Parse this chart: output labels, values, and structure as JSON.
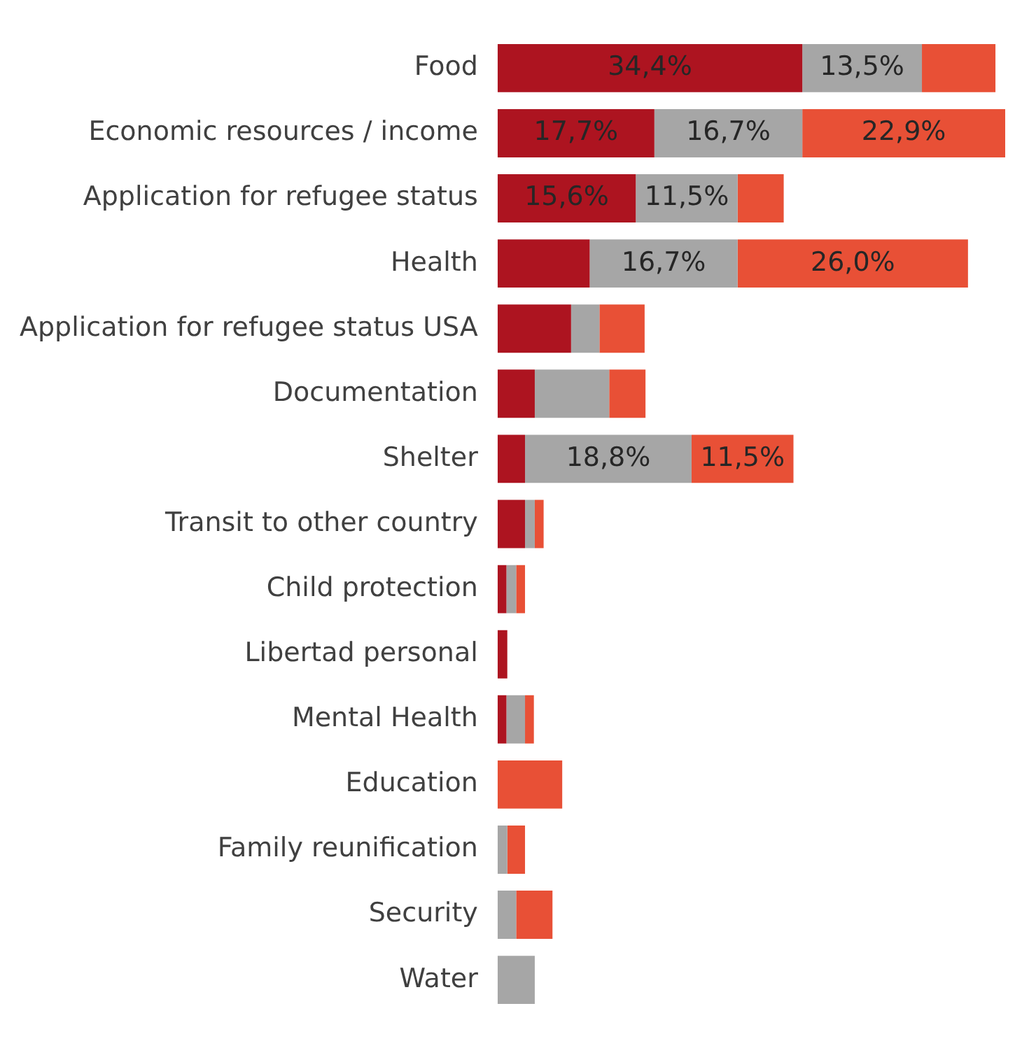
{
  "chart_data": {
    "type": "bar",
    "orientation": "horizontal",
    "stacked": true,
    "legend": false,
    "tick_labels": "y",
    "categories": [
      "Food",
      "Economic resources / income",
      "Application for refugee status",
      "Health",
      "Application for refugee status USA",
      "Documentation",
      "Shelter",
      "Transit to other country",
      "Child protection",
      "Libertad personal",
      "Mental Health",
      "Education",
      "Family reunification",
      "Security",
      "Water"
    ],
    "series": [
      {
        "color": "#ad1420",
        "values": [
          34.4,
          17.7,
          15.6,
          10.4,
          8.3,
          4.2,
          3.1,
          3.1,
          1.0,
          1.1,
          1.0,
          null,
          null,
          null,
          null
        ],
        "value_labels": [
          "34,4%",
          "17,7%",
          "15,6%",
          null,
          null,
          null,
          null,
          null,
          null,
          null,
          null,
          null,
          null,
          null,
          null
        ]
      },
      {
        "color": "#a6a6a6",
        "values": [
          13.5,
          16.7,
          11.5,
          16.7,
          3.2,
          8.4,
          18.8,
          1.1,
          1.1,
          null,
          2.1,
          null,
          1.1,
          2.1,
          4.2
        ],
        "value_labels": [
          "13,5%",
          "16,7%",
          "11,5%",
          "16,7%",
          null,
          null,
          "18,8%",
          null,
          null,
          null,
          null,
          null,
          null,
          null,
          null
        ]
      },
      {
        "color": "#e85036",
        "values": [
          8.3,
          22.9,
          5.2,
          26.0,
          5.1,
          4.1,
          11.5,
          1.0,
          1.0,
          null,
          1.0,
          7.3,
          2.0,
          4.1,
          null
        ],
        "value_labels": [
          null,
          "22,9%",
          null,
          "26,0%",
          null,
          null,
          "11,5%",
          null,
          null,
          null,
          null,
          null,
          null,
          null,
          null
        ]
      }
    ]
  }
}
